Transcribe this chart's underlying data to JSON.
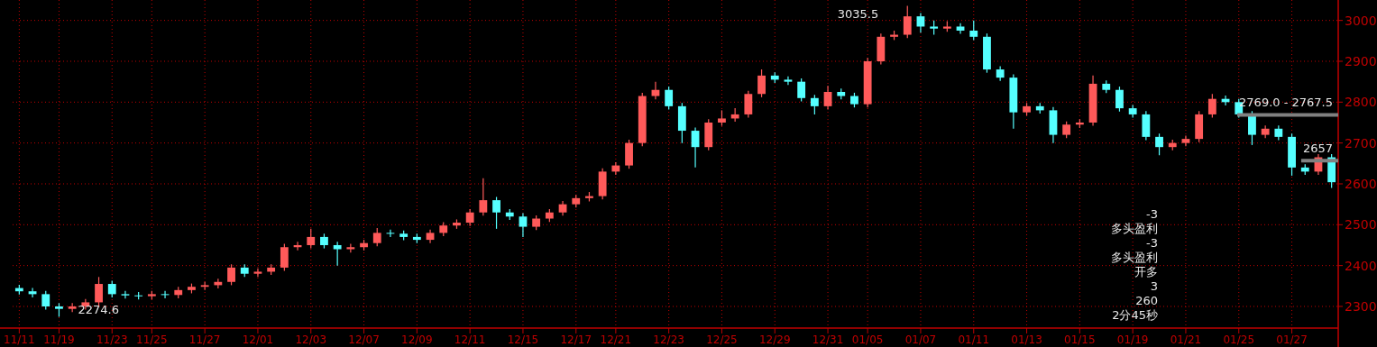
{
  "chart_data": {
    "type": "candlestick",
    "categories": [
      "11/11",
      null,
      null,
      "11/19",
      null,
      null,
      null,
      "11/23",
      null,
      null,
      "11/25",
      null,
      null,
      null,
      "11/27",
      null,
      null,
      null,
      "12/01",
      null,
      null,
      null,
      "12/03",
      null,
      null,
      null,
      "12/07",
      null,
      null,
      null,
      "12/09",
      null,
      null,
      null,
      "12/11",
      null,
      null,
      null,
      "12/15",
      null,
      null,
      null,
      "12/17",
      null,
      null,
      "12/21",
      null,
      null,
      null,
      "12/23",
      null,
      null,
      null,
      "12/25",
      null,
      null,
      null,
      "12/29",
      null,
      null,
      null,
      "12/31",
      null,
      null,
      "01/05",
      null,
      null,
      null,
      "01/07",
      null,
      null,
      null,
      "01/11",
      null,
      null,
      null,
      "01/13",
      null,
      null,
      null,
      "01/15",
      null,
      null,
      null,
      "01/19",
      null,
      null,
      null,
      "01/21",
      null,
      null,
      null,
      "01/25",
      null,
      null,
      null,
      "01/27",
      null,
      null,
      null
    ],
    "ohlc": [
      [
        2345,
        2353,
        2329,
        2337
      ],
      [
        2337,
        2345,
        2322,
        2330
      ],
      [
        2330,
        2338,
        2292,
        2300
      ],
      [
        2300,
        2308,
        2274.6,
        2294
      ],
      [
        2294,
        2308,
        2286,
        2300
      ],
      [
        2300,
        2318,
        2292,
        2310
      ],
      [
        2310,
        2372,
        2302,
        2355
      ],
      [
        2355,
        2363,
        2322,
        2330
      ],
      [
        2330,
        2338,
        2319,
        2327
      ],
      [
        2327,
        2335,
        2317,
        2325
      ],
      [
        2325,
        2338,
        2317,
        2330
      ],
      [
        2330,
        2338,
        2320,
        2328
      ],
      [
        2328,
        2348,
        2320,
        2340
      ],
      [
        2340,
        2356,
        2332,
        2348
      ],
      [
        2348,
        2360,
        2340,
        2352
      ],
      [
        2352,
        2368,
        2344,
        2360
      ],
      [
        2360,
        2403,
        2352,
        2395
      ],
      [
        2395,
        2403,
        2372,
        2380
      ],
      [
        2380,
        2393,
        2372,
        2385
      ],
      [
        2385,
        2403,
        2377,
        2395
      ],
      [
        2395,
        2453,
        2387,
        2445
      ],
      [
        2445,
        2458,
        2437,
        2450
      ],
      [
        2450,
        2490,
        2442,
        2470
      ],
      [
        2470,
        2478,
        2442,
        2450
      ],
      [
        2450,
        2458,
        2400,
        2440
      ],
      [
        2440,
        2453,
        2432,
        2445
      ],
      [
        2445,
        2463,
        2437,
        2455
      ],
      [
        2455,
        2492,
        2447,
        2480
      ],
      [
        2480,
        2488,
        2470,
        2478
      ],
      [
        2478,
        2486,
        2462,
        2470
      ],
      [
        2470,
        2478,
        2455,
        2463
      ],
      [
        2463,
        2488,
        2455,
        2480
      ],
      [
        2480,
        2506,
        2472,
        2498
      ],
      [
        2498,
        2513,
        2490,
        2505
      ],
      [
        2505,
        2538,
        2497,
        2530
      ],
      [
        2530,
        2614,
        2522,
        2560
      ],
      [
        2560,
        2568,
        2490,
        2530
      ],
      [
        2530,
        2538,
        2512,
        2520
      ],
      [
        2520,
        2528,
        2470,
        2495
      ],
      [
        2495,
        2523,
        2487,
        2515
      ],
      [
        2515,
        2538,
        2507,
        2530
      ],
      [
        2530,
        2558,
        2522,
        2550
      ],
      [
        2550,
        2573,
        2542,
        2565
      ],
      [
        2565,
        2580,
        2557,
        2570
      ],
      [
        2570,
        2638,
        2562,
        2630
      ],
      [
        2630,
        2653,
        2622,
        2645
      ],
      [
        2645,
        2708,
        2637,
        2700
      ],
      [
        2700,
        2823,
        2692,
        2815
      ],
      [
        2815,
        2850,
        2807,
        2830
      ],
      [
        2830,
        2838,
        2782,
        2790
      ],
      [
        2790,
        2798,
        2700,
        2730
      ],
      [
        2730,
        2738,
        2640,
        2690
      ],
      [
        2690,
        2758,
        2682,
        2750
      ],
      [
        2750,
        2780,
        2742,
        2760
      ],
      [
        2760,
        2785,
        2752,
        2770
      ],
      [
        2770,
        2828,
        2762,
        2820
      ],
      [
        2820,
        2880,
        2812,
        2865
      ],
      [
        2865,
        2873,
        2847,
        2855
      ],
      [
        2855,
        2863,
        2842,
        2850
      ],
      [
        2850,
        2858,
        2802,
        2810
      ],
      [
        2810,
        2818,
        2770,
        2790
      ],
      [
        2790,
        2840,
        2782,
        2825
      ],
      [
        2825,
        2833,
        2807,
        2815
      ],
      [
        2815,
        2823,
        2787,
        2795
      ],
      [
        2795,
        2908,
        2787,
        2900
      ],
      [
        2900,
        2968,
        2892,
        2960
      ],
      [
        2960,
        2975,
        2952,
        2965
      ],
      [
        2965,
        3035.5,
        2957,
        3010
      ],
      [
        3010,
        3018,
        2970,
        2985
      ],
      [
        2985,
        3000,
        2965,
        2980
      ],
      [
        2980,
        2998,
        2972,
        2985
      ],
      [
        2985,
        2993,
        2967,
        2975
      ],
      [
        2975,
        3000,
        2952,
        2960
      ],
      [
        2960,
        2968,
        2872,
        2880
      ],
      [
        2880,
        2888,
        2852,
        2860
      ],
      [
        2860,
        2868,
        2735,
        2775
      ],
      [
        2775,
        2798,
        2767,
        2790
      ],
      [
        2790,
        2798,
        2772,
        2780
      ],
      [
        2780,
        2788,
        2700,
        2720
      ],
      [
        2720,
        2753,
        2712,
        2745
      ],
      [
        2745,
        2758,
        2737,
        2750
      ],
      [
        2750,
        2865,
        2742,
        2845
      ],
      [
        2845,
        2853,
        2822,
        2830
      ],
      [
        2830,
        2838,
        2777,
        2785
      ],
      [
        2785,
        2793,
        2762,
        2770
      ],
      [
        2770,
        2778,
        2707,
        2715
      ],
      [
        2715,
        2723,
        2670,
        2690
      ],
      [
        2690,
        2708,
        2682,
        2700
      ],
      [
        2700,
        2718,
        2692,
        2710
      ],
      [
        2710,
        2778,
        2702,
        2770
      ],
      [
        2770,
        2820,
        2762,
        2808
      ],
      [
        2808,
        2816,
        2792,
        2800
      ],
      [
        2800,
        2808,
        2762,
        2770
      ],
      [
        2770,
        2778,
        2695,
        2720
      ],
      [
        2720,
        2743,
        2712,
        2735
      ],
      [
        2735,
        2743,
        2707,
        2715
      ],
      [
        2715,
        2723,
        2620,
        2640
      ],
      [
        2640,
        2648,
        2622,
        2630
      ],
      [
        2630,
        2673,
        2622,
        2665
      ],
      [
        2665,
        2673,
        2590,
        2604
      ]
    ],
    "ylim": [
      2247,
      3050
    ],
    "yticks": [
      2300,
      2400,
      2500,
      2600,
      2700,
      2800,
      2900,
      3000
    ],
    "grid": true,
    "ref_lines": [
      {
        "axis": "y",
        "value": 2769,
        "label": "2769.0 - 2767.5",
        "color": "#808080"
      },
      {
        "axis": "y",
        "value": 2657,
        "label": "2657",
        "color": "#808080"
      }
    ],
    "annotations": [
      "3035.5",
      "2274.6",
      "-3",
      "多头盈利",
      "-3",
      "多头盈利",
      "开多",
      "3",
      "260",
      "2分45秒"
    ]
  }
}
